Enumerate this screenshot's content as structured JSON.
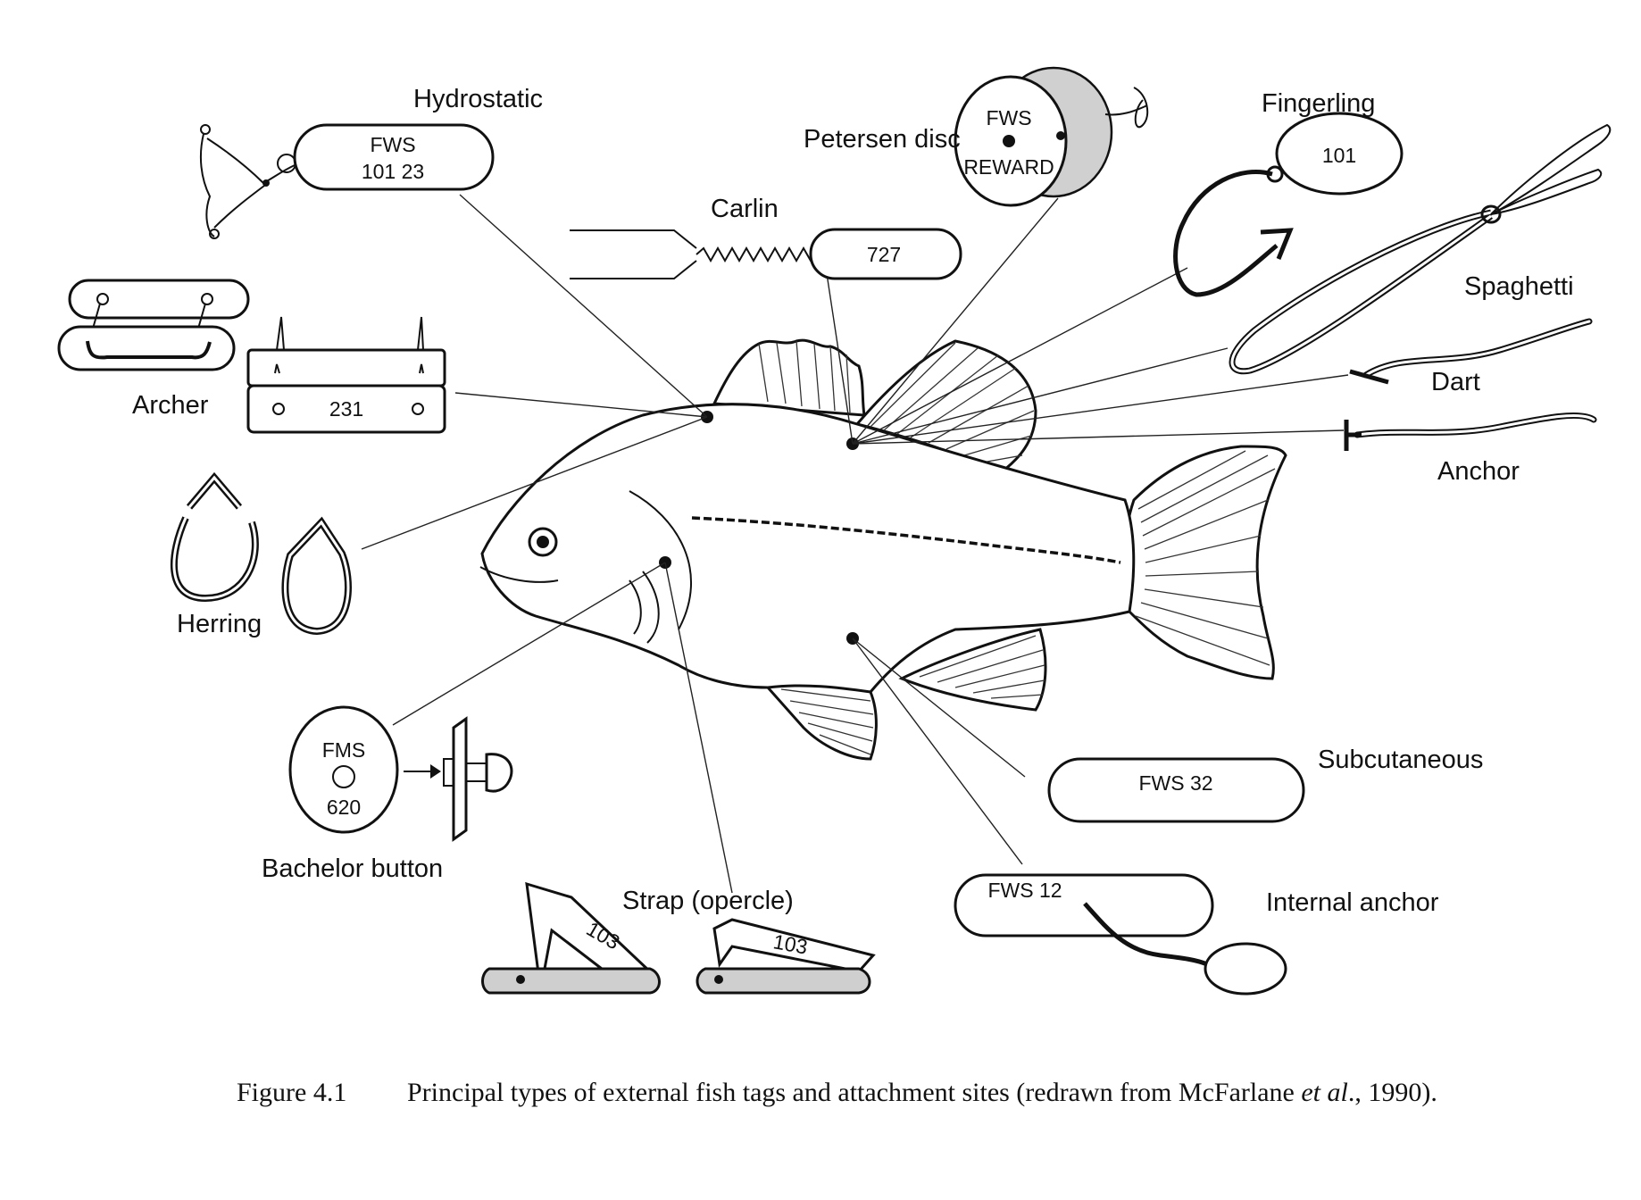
{
  "labels": {
    "hydrostatic": "Hydrostatic",
    "petersen": "Petersen disc",
    "fingerling": "Fingerling",
    "carlin": "Carlin",
    "spaghetti": "Spaghetti",
    "archer": "Archer",
    "dart": "Dart",
    "anchor": "Anchor",
    "herring": "Herring",
    "subcutaneous": "Subcutaneous",
    "bachelor": "Bachelor button",
    "strap": "Strap (opercle)",
    "internal_anchor": "Internal anchor"
  },
  "tags": {
    "hydrostatic_line1": "FWS",
    "hydrostatic_line2": "101 23",
    "petersen_line1": "FWS",
    "petersen_line2": "REWARD",
    "fingerling_num": "101",
    "carlin_num": "727",
    "archer_num": "231",
    "bachelor_line1": "FMS",
    "bachelor_line2": "620",
    "subcutaneous_text": "FWS 32",
    "internal_anchor_text": "FWS 12",
    "strap_num_1": "103",
    "strap_num_2": "103"
  },
  "caption": {
    "figure_number": "Figure 4.1",
    "text_before": "Principal types of external fish tags and attachment sites  (redrawn from McFarlane ",
    "text_italic": "et al",
    "text_after": "., 1990)."
  },
  "colors": {
    "ink": "#111111",
    "shade": "#cfcfcf",
    "background": "#ffffff"
  }
}
